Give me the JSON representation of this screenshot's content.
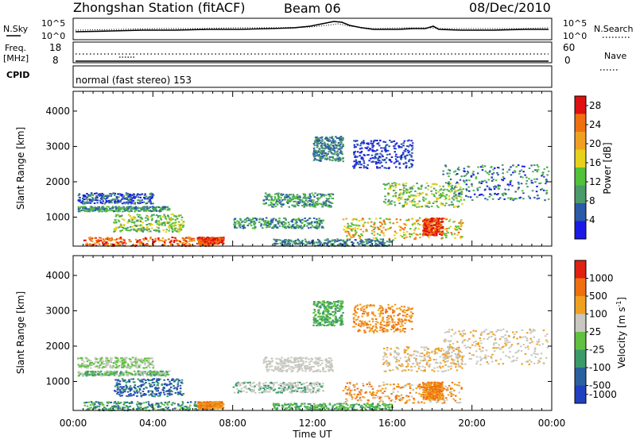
{
  "header": {
    "station": "Zhongshan Station (fitACF)",
    "beam": "Beam 06",
    "date": "08/Dec/2010"
  },
  "top_panels": {
    "nsky_label": "N.Sky",
    "nsky_ticks": [
      "10^5",
      "10^0"
    ],
    "nsearch_label": "N.Search",
    "freq_label_line1": "Freq.",
    "freq_label_line2": "[MHz]",
    "freq_ticks": [
      "18",
      "8"
    ],
    "nave_label": "Nave",
    "nave_ticks": [
      "60",
      "0"
    ],
    "cpid_label": "CPID",
    "cpid_value": "normal (fast stereo) 153"
  },
  "colors": {
    "power_scale": [
      "#1a1ae6",
      "#2a5aa8",
      "#4b9a6a",
      "#52c23a",
      "#e6d21a",
      "#f0a020",
      "#f07010",
      "#e01010"
    ],
    "velocity_scale": [
      "#2040c0",
      "#2a60a0",
      "#3a9a6a",
      "#60c040",
      "#c8c8c0",
      "#f0a020",
      "#f07010",
      "#e02010"
    ]
  },
  "chart_data": [
    {
      "type": "heatmap",
      "name": "power",
      "ylabel": "Slant Range [km]",
      "xlabel": "Time UT",
      "x_ticks": [
        "00:00",
        "04:00",
        "08:00",
        "12:00",
        "16:00",
        "20:00",
        "00:00"
      ],
      "x_range_hours": [
        0,
        24
      ],
      "y_range_km": [
        180,
        4560
      ],
      "y_ticks": [
        1000,
        2000,
        3000,
        4000
      ],
      "colorbar": {
        "label": "Power [dB]",
        "ticks": [
          "28",
          "24",
          "20",
          "16",
          "12",
          "8",
          "4"
        ],
        "range": [
          0,
          30
        ]
      }
    },
    {
      "type": "heatmap",
      "name": "velocity",
      "ylabel": "Slant Range [km]",
      "xlabel": "Time UT",
      "x_ticks": [
        "00:00",
        "04:00",
        "08:00",
        "12:00",
        "16:00",
        "20:00",
        "00:00"
      ],
      "x_range_hours": [
        0,
        24
      ],
      "y_range_km": [
        180,
        4560
      ],
      "y_ticks": [
        1000,
        2000,
        3000,
        4000
      ],
      "colorbar": {
        "label_main": "Velocity",
        "label_unit": "[m s",
        "label_exp": "-1",
        "label_close": "]",
        "ticks": [
          "1000",
          "500",
          "100",
          "25",
          "-25",
          "-100",
          "-500",
          "-1000"
        ]
      }
    }
  ]
}
